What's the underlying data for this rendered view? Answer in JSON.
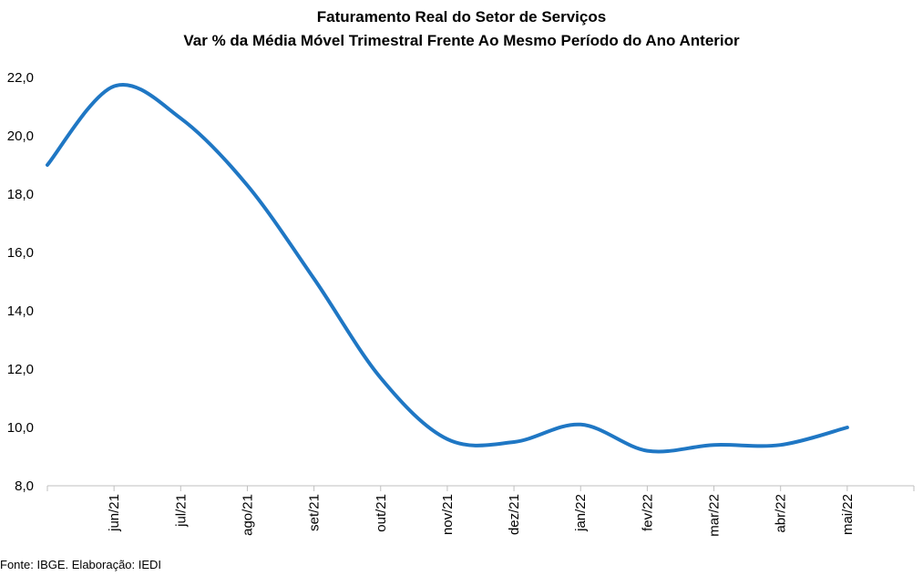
{
  "chart_data": {
    "type": "line",
    "title": "Faturamento  Real do Setor de Serviços",
    "subtitle": "Var % da Média Móvel Trimestral Frente Ao Mesmo Período do Ano Anterior",
    "xlabel": "",
    "ylabel": "",
    "ylim": [
      8.0,
      22.0
    ],
    "yticks": [
      "8,0",
      "10,0",
      "12,0",
      "14,0",
      "16,0",
      "18,0",
      "20,0",
      "22,0"
    ],
    "grid": false,
    "legend": "none",
    "categories": [
      "",
      "jun/21",
      "jul/21",
      "ago/21",
      "set/21",
      "out/21",
      "nov/21",
      "dez/21",
      "jan/22",
      "fev/22",
      "mar/22",
      "abr/22",
      "mai/22"
    ],
    "series": [
      {
        "name": "Faturamento Real do Setor de Serviços",
        "color": "#1f77c4",
        "values": [
          19.0,
          21.7,
          20.6,
          18.3,
          15.1,
          11.7,
          9.6,
          9.5,
          10.1,
          9.2,
          9.4,
          9.4,
          10.0
        ]
      }
    ]
  },
  "footer": {
    "source": "Fonte: IBGE. Elaboração: IEDI"
  }
}
